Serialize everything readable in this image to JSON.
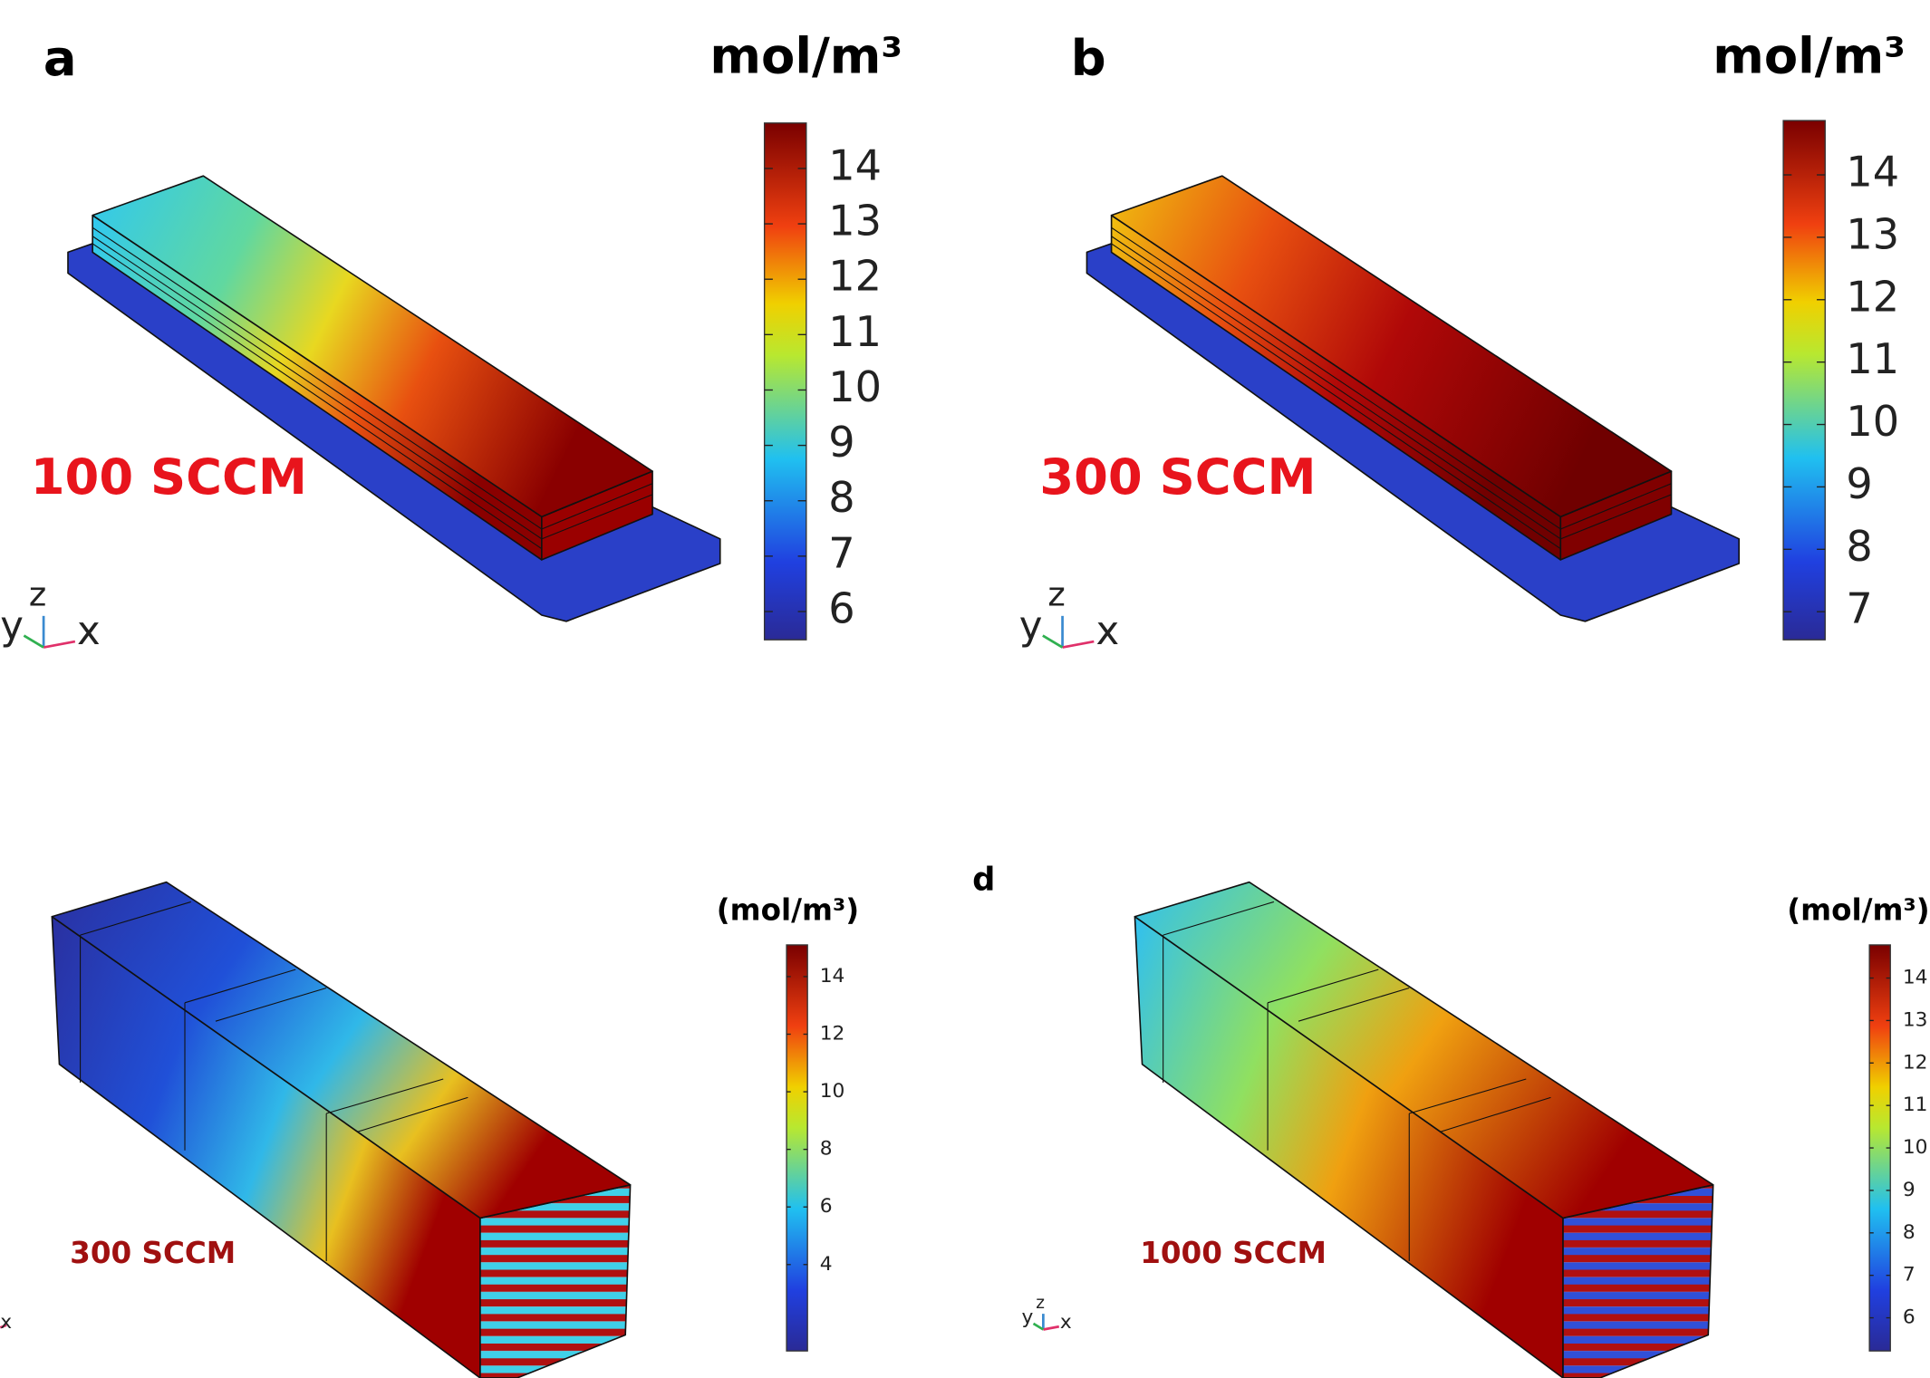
{
  "panels": [
    {
      "label": "a",
      "unit": "mol/m³",
      "flow": "100 SCCM",
      "triad": [
        "y",
        "z",
        "x"
      ],
      "colorbar": {
        "range": [
          5.49,
          14.82
        ],
        "ticks": [
          6,
          7,
          8,
          9,
          10,
          11,
          12,
          13,
          14
        ]
      }
    },
    {
      "label": "b",
      "unit": "mol/m³",
      "flow": "300 SCCM",
      "triad": [
        "y",
        "z",
        "x"
      ],
      "colorbar": {
        "range": [
          6.55,
          14.87
        ],
        "ticks": [
          7,
          8,
          9,
          10,
          11,
          12,
          13,
          14
        ]
      }
    },
    {
      "unit": "(mol/m³)",
      "flow": "300 SCCM",
      "triad": [
        "x"
      ],
      "colorbar": {
        "range": [
          1.0,
          15.1
        ],
        "ticks": [
          4,
          6,
          8,
          10,
          12,
          14
        ]
      }
    },
    {
      "label": "d",
      "unit": "(mol/m³)",
      "flow": "1000 SCCM",
      "triad": [
        "y",
        "z",
        "x"
      ],
      "colorbar": {
        "range": [
          5.22,
          14.78
        ],
        "ticks": [
          6,
          7,
          8,
          9,
          10,
          11,
          12,
          13,
          14
        ]
      }
    }
  ]
}
